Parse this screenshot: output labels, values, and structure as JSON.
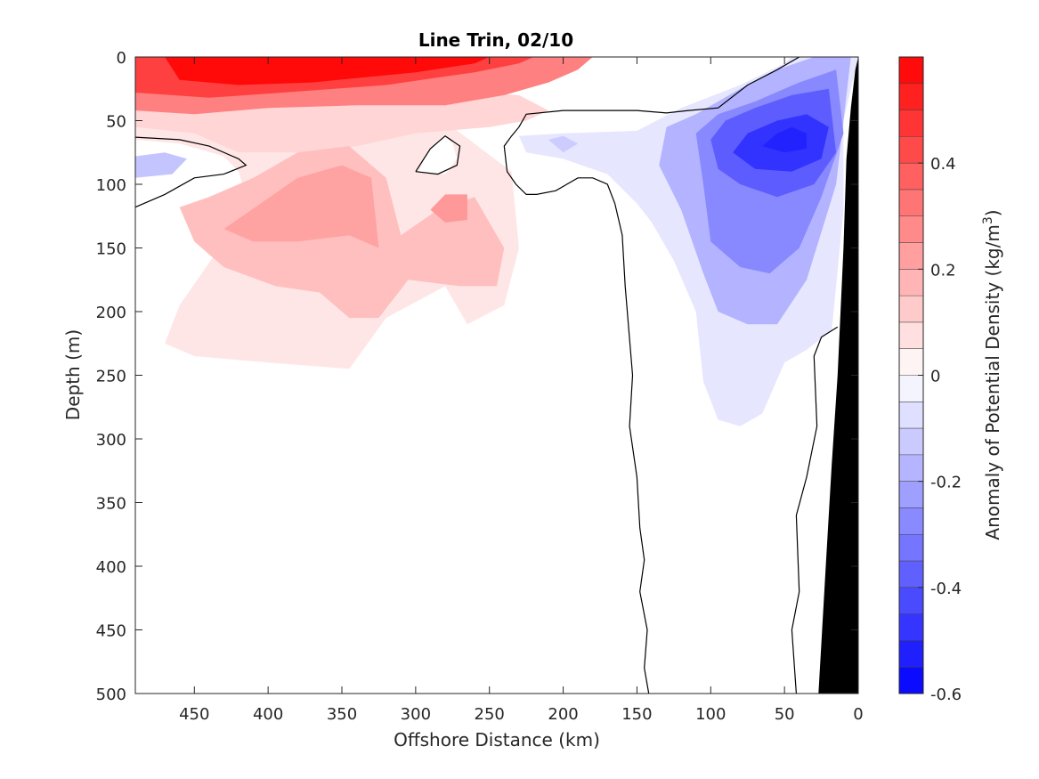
{
  "chart_data": {
    "type": "contour",
    "title": "Line Trin, 02/10",
    "xlabel": "Offshore Distance (km)",
    "ylabel": "Depth (m)",
    "colorbar_label_main": "Anomaly of Potential Density (kg/m",
    "colorbar_label_sup": "3",
    "colorbar_label_close": ")",
    "xlim": [
      490,
      0
    ],
    "ylim": [
      500,
      0
    ],
    "x_ticks": [
      450,
      400,
      350,
      300,
      250,
      200,
      150,
      100,
      50,
      0
    ],
    "x_tick_labels": [
      "450",
      "400",
      "350",
      "300",
      "250",
      "200",
      "150",
      "100",
      "50",
      "0"
    ],
    "y_ticks": [
      0,
      50,
      100,
      150,
      200,
      250,
      300,
      350,
      400,
      450,
      500
    ],
    "y_tick_labels": [
      "0",
      "50",
      "100",
      "150",
      "200",
      "250",
      "300",
      "350",
      "400",
      "450",
      "500"
    ],
    "colorbar_range": [
      -0.6,
      0.6
    ],
    "colorbar_ticks": [
      0.4,
      0.2,
      0,
      -0.2,
      -0.4,
      -0.6
    ],
    "colorbar_tick_labels": [
      "0.4",
      "0.2",
      "0",
      "-0.2",
      "-0.4",
      "-0.6"
    ],
    "colorbar_levels": 24,
    "colors": {
      "positive": "#ff0000",
      "negative": "#0000ff",
      "zero": "#ffffff",
      "bathymetry": "#000000"
    },
    "regions": [
      {
        "level": 0.06,
        "points": [
          [
            490,
            65
          ],
          [
            460,
            68
          ],
          [
            430,
            78
          ],
          [
            420,
            90
          ],
          [
            415,
            110
          ],
          [
            430,
            145
          ],
          [
            460,
            195
          ],
          [
            470,
            225
          ],
          [
            450,
            235
          ],
          [
            400,
            240
          ],
          [
            345,
            245
          ],
          [
            320,
            205
          ],
          [
            280,
            180
          ],
          [
            265,
            210
          ],
          [
            240,
            195
          ],
          [
            230,
            150
          ],
          [
            235,
            90
          ],
          [
            275,
            55
          ],
          [
            340,
            45
          ],
          [
            400,
            40
          ],
          [
            470,
            42
          ],
          [
            490,
            45
          ]
        ]
      },
      {
        "level": 0.1,
        "points": [
          [
            490,
            55
          ],
          [
            450,
            60
          ],
          [
            420,
            75
          ],
          [
            380,
            75
          ],
          [
            340,
            70
          ],
          [
            300,
            60
          ],
          [
            250,
            55
          ],
          [
            225,
            50
          ],
          [
            210,
            42
          ],
          [
            230,
            30
          ],
          [
            300,
            25
          ],
          [
            380,
            22
          ],
          [
            450,
            25
          ],
          [
            490,
            30
          ]
        ]
      },
      {
        "level": 0.15,
        "points": [
          [
            460,
            118
          ],
          [
            440,
            110
          ],
          [
            410,
            95
          ],
          [
            380,
            75
          ],
          [
            345,
            70
          ],
          [
            320,
            95
          ],
          [
            310,
            140
          ],
          [
            285,
            120
          ],
          [
            260,
            110
          ],
          [
            240,
            150
          ],
          [
            245,
            180
          ],
          [
            270,
            180
          ],
          [
            305,
            175
          ],
          [
            325,
            205
          ],
          [
            345,
            205
          ],
          [
            365,
            185
          ],
          [
            395,
            180
          ],
          [
            430,
            165
          ],
          [
            450,
            145
          ]
        ]
      },
      {
        "level": 0.22,
        "points": [
          [
            430,
            135
          ],
          [
            405,
            115
          ],
          [
            380,
            95
          ],
          [
            350,
            85
          ],
          [
            330,
            95
          ],
          [
            325,
            150
          ],
          [
            345,
            140
          ],
          [
            380,
            145
          ],
          [
            410,
            145
          ]
        ]
      },
      {
        "level": 0.24,
        "points": [
          [
            290,
            120
          ],
          [
            280,
            108
          ],
          [
            265,
            108
          ],
          [
            265,
            128
          ],
          [
            280,
            130
          ]
        ]
      },
      {
        "level": 0.3,
        "points": [
          [
            490,
            42
          ],
          [
            450,
            45
          ],
          [
            400,
            40
          ],
          [
            340,
            38
          ],
          [
            280,
            38
          ],
          [
            240,
            30
          ],
          [
            210,
            20
          ],
          [
            190,
            10
          ],
          [
            180,
            0
          ],
          [
            490,
            0
          ]
        ]
      },
      {
        "level": 0.45,
        "points": [
          [
            490,
            28
          ],
          [
            440,
            32
          ],
          [
            390,
            28
          ],
          [
            320,
            22
          ],
          [
            260,
            12
          ],
          [
            230,
            5
          ],
          [
            220,
            0
          ],
          [
            490,
            0
          ]
        ]
      },
      {
        "level": 0.58,
        "points": [
          [
            460,
            18
          ],
          [
            420,
            22
          ],
          [
            370,
            20
          ],
          [
            300,
            12
          ],
          [
            260,
            5
          ],
          [
            250,
            0
          ],
          [
            470,
            0
          ]
        ]
      },
      {
        "level": -0.06,
        "points": [
          [
            230,
            62
          ],
          [
            200,
            60
          ],
          [
            150,
            58
          ],
          [
            120,
            40
          ],
          [
            80,
            22
          ],
          [
            50,
            5
          ],
          [
            45,
            0
          ],
          [
            0,
            0
          ],
          [
            10,
            50
          ],
          [
            10,
            120
          ],
          [
            18,
            215
          ],
          [
            35,
            230
          ],
          [
            50,
            240
          ],
          [
            65,
            280
          ],
          [
            80,
            290
          ],
          [
            95,
            285
          ],
          [
            105,
            255
          ],
          [
            110,
            200
          ],
          [
            125,
            160
          ],
          [
            140,
            130
          ],
          [
            150,
            115
          ],
          [
            170,
            92
          ],
          [
            200,
            80
          ],
          [
            225,
            75
          ]
        ]
      },
      {
        "level": -0.12,
        "points": [
          [
            210,
            65
          ],
          [
            200,
            62
          ],
          [
            190,
            68
          ],
          [
            200,
            75
          ]
        ]
      },
      {
        "level": -0.14,
        "points": [
          [
            490,
            78
          ],
          [
            470,
            75
          ],
          [
            455,
            80
          ],
          [
            465,
            92
          ],
          [
            490,
            95
          ]
        ]
      },
      {
        "level": -0.18,
        "points": [
          [
            130,
            55
          ],
          [
            110,
            45
          ],
          [
            80,
            25
          ],
          [
            55,
            10
          ],
          [
            30,
            0
          ],
          [
            5,
            0
          ],
          [
            15,
            100
          ],
          [
            35,
            175
          ],
          [
            55,
            210
          ],
          [
            75,
            210
          ],
          [
            95,
            200
          ],
          [
            105,
            170
          ],
          [
            120,
            120
          ],
          [
            135,
            85
          ]
        ]
      },
      {
        "level": -0.28,
        "points": [
          [
            110,
            60
          ],
          [
            95,
            45
          ],
          [
            70,
            35
          ],
          [
            40,
            20
          ],
          [
            15,
            10
          ],
          [
            10,
            60
          ],
          [
            25,
            110
          ],
          [
            40,
            150
          ],
          [
            60,
            170
          ],
          [
            80,
            165
          ],
          [
            100,
            145
          ],
          [
            105,
            100
          ]
        ]
      },
      {
        "level": -0.38,
        "points": [
          [
            100,
            65
          ],
          [
            90,
            50
          ],
          [
            70,
            40
          ],
          [
            45,
            30
          ],
          [
            20,
            25
          ],
          [
            15,
            75
          ],
          [
            30,
            100
          ],
          [
            55,
            110
          ],
          [
            80,
            100
          ],
          [
            95,
            88
          ]
        ]
      },
      {
        "level": -0.48,
        "points": [
          [
            85,
            75
          ],
          [
            75,
            60
          ],
          [
            55,
            50
          ],
          [
            35,
            45
          ],
          [
            20,
            55
          ],
          [
            25,
            80
          ],
          [
            45,
            90
          ],
          [
            70,
            88
          ]
        ]
      },
      {
        "level": -0.52,
        "points": [
          [
            65,
            70
          ],
          [
            55,
            60
          ],
          [
            45,
            55
          ],
          [
            35,
            60
          ],
          [
            35,
            72
          ],
          [
            50,
            75
          ]
        ]
      },
      {
        "level": 0.0,
        "points": [
          [
            298,
            90
          ],
          [
            292,
            75
          ],
          [
            280,
            62
          ],
          [
            275,
            68
          ],
          [
            272,
            80
          ],
          [
            280,
            92
          ]
        ]
      }
    ],
    "zero_contours": [
      [
        [
          490,
          118
        ],
        [
          470,
          108
        ],
        [
          450,
          95
        ],
        [
          430,
          92
        ],
        [
          415,
          85
        ],
        [
          420,
          80
        ],
        [
          440,
          70
        ],
        [
          460,
          65
        ],
        [
          490,
          63
        ]
      ],
      [
        [
          40,
          0
        ],
        [
          55,
          10
        ],
        [
          75,
          22
        ],
        [
          95,
          40
        ],
        [
          115,
          42
        ],
        [
          130,
          44
        ],
        [
          150,
          42
        ],
        [
          200,
          42
        ],
        [
          225,
          45
        ],
        [
          230,
          55
        ],
        [
          235,
          62
        ],
        [
          240,
          70
        ],
        [
          238,
          90
        ],
        [
          232,
          100
        ],
        [
          225,
          108
        ],
        [
          218,
          108
        ],
        [
          205,
          105
        ],
        [
          190,
          95
        ],
        [
          180,
          95
        ],
        [
          170,
          100
        ],
        [
          165,
          115
        ],
        [
          160,
          140
        ],
        [
          158,
          180
        ],
        [
          153,
          250
        ],
        [
          155,
          290
        ],
        [
          150,
          330
        ],
        [
          148,
          370
        ],
        [
          145,
          395
        ],
        [
          148,
          420
        ],
        [
          143,
          450
        ],
        [
          145,
          480
        ],
        [
          142,
          500
        ]
      ],
      [
        [
          14,
          212
        ],
        [
          25,
          220
        ],
        [
          30,
          235
        ],
        [
          28,
          290
        ],
        [
          35,
          330
        ],
        [
          42,
          360
        ],
        [
          40,
          420
        ],
        [
          45,
          450
        ],
        [
          42,
          500
        ]
      ],
      [
        [
          300,
          90
        ],
        [
          290,
          72
        ],
        [
          280,
          62
        ],
        [
          270,
          70
        ],
        [
          272,
          85
        ],
        [
          285,
          92
        ],
        [
          300,
          90
        ]
      ]
    ],
    "bathymetry": [
      [
        0,
        0
      ],
      [
        2,
        10
      ],
      [
        5,
        40
      ],
      [
        8,
        80
      ],
      [
        10,
        150
      ],
      [
        14,
        250
      ],
      [
        18,
        320
      ],
      [
        22,
        400
      ],
      [
        25,
        460
      ],
      [
        27,
        500
      ],
      [
        0,
        500
      ]
    ]
  }
}
